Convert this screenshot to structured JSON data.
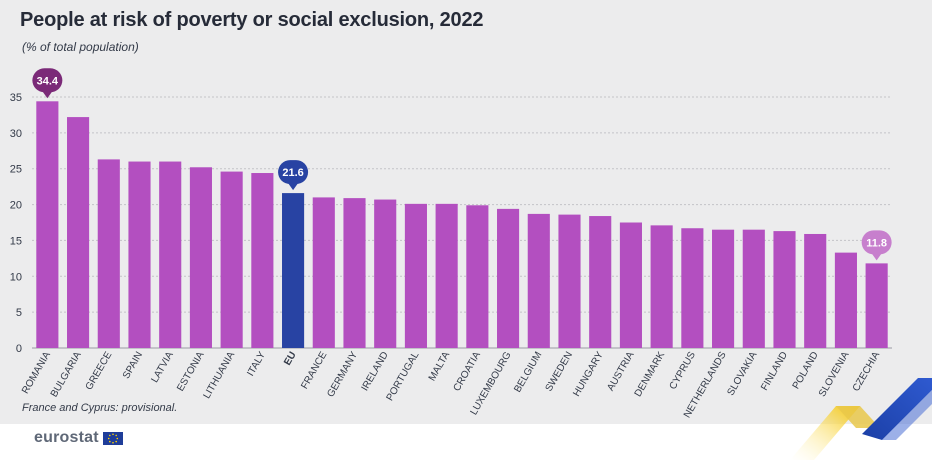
{
  "header": {
    "title": "People at risk of poverty or social exclusion, 2022",
    "subtitle": "(% of total population)"
  },
  "footnote": "France and Cyprus: provisional.",
  "logo": {
    "text": "eurostat",
    "icon": "eu-flag-icon"
  },
  "colors": {
    "bar": "#b34fc0",
    "eu_bar": "#2843a3",
    "max_label_bg": "#7b2a78",
    "min_label_bg": "#c77fcd",
    "grid": "#c3c3c8",
    "axis_text": "#333a48"
  },
  "chart_data": {
    "type": "bar",
    "categories": [
      "ROMANIA",
      "BULGARIA",
      "GREECE",
      "SPAIN",
      "LATVIA",
      "ESTONIA",
      "LITHUANIA",
      "ITALY",
      "EU",
      "FRANCE",
      "GERMANY",
      "IRELAND",
      "PORTUGAL",
      "MALTA",
      "CROATIA",
      "LUXEMBOURG",
      "BELGIUM",
      "SWEDEN",
      "HUNGARY",
      "AUSTRIA",
      "DENMARK",
      "CYPRUS",
      "NETHERLANDS",
      "SLOVAKIA",
      "FINLAND",
      "POLAND",
      "SLOVENIA",
      "CZECHIA"
    ],
    "values": [
      34.4,
      32.2,
      26.3,
      26.0,
      26.0,
      25.2,
      24.6,
      24.4,
      21.6,
      21.0,
      20.9,
      20.7,
      20.1,
      20.1,
      19.9,
      19.4,
      18.7,
      18.6,
      18.4,
      17.5,
      17.1,
      16.7,
      16.5,
      16.5,
      16.3,
      15.9,
      13.3,
      11.8
    ],
    "highlighted": "EU",
    "data_labels": [
      {
        "category": "ROMANIA",
        "text": "34.4"
      },
      {
        "category": "EU",
        "text": "21.6"
      },
      {
        "category": "CZECHIA",
        "text": "11.8"
      }
    ],
    "yticks": [
      0,
      5,
      10,
      15,
      20,
      25,
      30,
      35
    ],
    "ylim": [
      0,
      35
    ],
    "grid": true,
    "legend": "none"
  }
}
